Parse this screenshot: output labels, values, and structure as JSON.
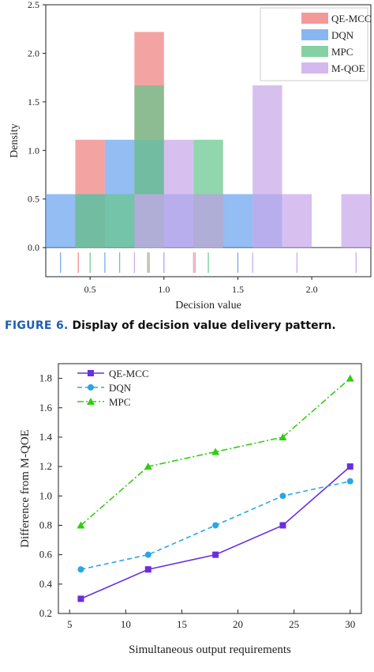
{
  "figure6": {
    "label": "FIGURE 6.",
    "text": "Display of decision value delivery pattern."
  },
  "chart_data": [
    {
      "type": "histogram",
      "xlabel": "Decision value",
      "ylabel": "Density",
      "xlim": [
        0.2,
        2.4
      ],
      "ylim": [
        -0.3,
        2.5
      ],
      "xticks": [
        "0.5",
        "1.0",
        "1.5",
        "2.0"
      ],
      "yticks": [
        "0.0",
        "0.5",
        "1.0",
        "1.5",
        "2.0",
        "2.5"
      ],
      "legend": "top-right",
      "grid": false,
      "bin_width": 0.2,
      "series": [
        {
          "name": "QE-MCC",
          "color": "#f08080",
          "bins": [
            {
              "x0": 0.4,
              "density": 1.11
            },
            {
              "x0": 0.8,
              "density": 2.22
            },
            {
              "x0": 1.2,
              "density": 0.55
            }
          ],
          "rug": [
            0.42,
            0.89,
            1.21
          ]
        },
        {
          "name": "DQN",
          "color": "#6aa4ee",
          "bins": [
            {
              "x0": 0.2,
              "density": 0.55
            },
            {
              "x0": 0.4,
              "density": 0.55
            },
            {
              "x0": 0.6,
              "density": 1.11
            },
            {
              "x0": 0.8,
              "density": 1.11
            },
            {
              "x0": 1.0,
              "density": 0.55
            },
            {
              "x0": 1.2,
              "density": 0.55
            },
            {
              "x0": 1.4,
              "density": 0.55
            },
            {
              "x0": 1.6,
              "density": 0.55
            }
          ],
          "rug": [
            0.3,
            0.6,
            1.0,
            1.5
          ]
        },
        {
          "name": "MPC",
          "color": "#66c68c",
          "bins": [
            {
              "x0": 0.4,
              "density": 0.55
            },
            {
              "x0": 0.6,
              "density": 0.55
            },
            {
              "x0": 0.8,
              "density": 1.67
            },
            {
              "x0": 1.2,
              "density": 1.11
            }
          ],
          "rug": [
            0.5,
            0.7,
            0.9,
            1.3
          ]
        },
        {
          "name": "M-QOE",
          "color": "#c8a8ea",
          "bins": [
            {
              "x0": 0.8,
              "density": 0.55
            },
            {
              "x0": 1.0,
              "density": 1.11
            },
            {
              "x0": 1.2,
              "density": 0.55
            },
            {
              "x0": 1.6,
              "density": 1.67
            },
            {
              "x0": 1.8,
              "density": 0.55
            },
            {
              "x0": 2.2,
              "density": 0.55
            }
          ],
          "rug": [
            0.8,
            1.0,
            1.2,
            1.6,
            1.9,
            2.3
          ]
        }
      ]
    },
    {
      "type": "line",
      "xlabel": "Simultaneous output requirements",
      "ylabel": "Difference from M-QOE",
      "xlim": [
        4,
        31
      ],
      "ylim": [
        0.2,
        1.9
      ],
      "xticks": [
        "5",
        "10",
        "15",
        "20",
        "25",
        "30"
      ],
      "yticks": [
        "0.2",
        "0.4",
        "0.6",
        "0.8",
        "1.0",
        "1.2",
        "1.4",
        "1.6",
        "1.8"
      ],
      "legend": "top-left",
      "grid": false,
      "x": [
        6,
        12,
        18,
        24,
        30
      ],
      "series": [
        {
          "name": "QE-MCC",
          "color": "#6a2ee0",
          "dash": "solid",
          "marker": "square",
          "values": [
            0.3,
            0.5,
            0.6,
            0.8,
            1.2
          ]
        },
        {
          "name": "DQN",
          "color": "#2aa6e8",
          "dash": "dashed",
          "marker": "circle",
          "values": [
            0.5,
            0.6,
            0.8,
            1.0,
            1.1
          ]
        },
        {
          "name": "MPC",
          "color": "#33cc11",
          "dash": "dashdot",
          "marker": "triangle",
          "values": [
            0.8,
            1.2,
            1.3,
            1.4,
            1.8
          ]
        }
      ]
    }
  ]
}
